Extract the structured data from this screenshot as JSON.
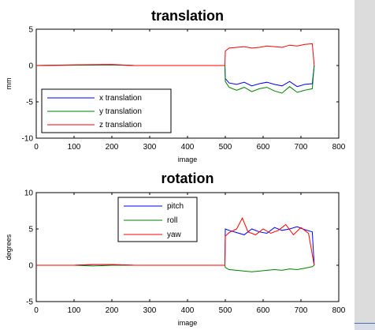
{
  "chart_data": [
    {
      "type": "line",
      "title": "translation",
      "xlabel": "image",
      "ylabel": "mm",
      "xlim": [
        0,
        800
      ],
      "ylim": [
        -10,
        5
      ],
      "xticks": [
        "0",
        "100",
        "200",
        "300",
        "400",
        "500",
        "600",
        "700",
        "800"
      ],
      "yticks": [
        "5",
        "0",
        "-5",
        "-10"
      ],
      "grid": false,
      "legend_position": "bottom-left",
      "series": [
        {
          "name": "x translation",
          "color": "#0000ff",
          "x": [
            0,
            100,
            200,
            260,
            300,
            400,
            499,
            500,
            510,
            530,
            550,
            570,
            590,
            610,
            630,
            650,
            670,
            690,
            710,
            730,
            735
          ],
          "y": [
            0.0,
            0.05,
            0.1,
            0.0,
            0.0,
            0.0,
            0.0,
            -1.8,
            -2.4,
            -2.6,
            -2.3,
            -2.8,
            -2.5,
            -2.3,
            -2.6,
            -2.8,
            -2.2,
            -2.9,
            -2.6,
            -2.5,
            0.0
          ]
        },
        {
          "name": "y translation",
          "color": "#008000",
          "x": [
            0,
            100,
            200,
            260,
            300,
            400,
            499,
            500,
            510,
            530,
            550,
            570,
            590,
            610,
            630,
            650,
            670,
            690,
            710,
            730,
            735
          ],
          "y": [
            0.0,
            0.05,
            0.1,
            0.0,
            0.0,
            0.0,
            0.0,
            -2.2,
            -3.0,
            -3.4,
            -3.0,
            -3.6,
            -3.2,
            -3.0,
            -3.5,
            -3.8,
            -2.9,
            -3.7,
            -3.4,
            -3.2,
            0.0
          ]
        },
        {
          "name": "z translation",
          "color": "#ff0000",
          "x": [
            0,
            100,
            200,
            260,
            300,
            400,
            499,
            500,
            510,
            530,
            550,
            570,
            590,
            610,
            630,
            650,
            670,
            690,
            710,
            730,
            735
          ],
          "y": [
            0.0,
            0.1,
            0.15,
            0.0,
            0.0,
            0.0,
            0.0,
            2.0,
            2.4,
            2.5,
            2.6,
            2.4,
            2.5,
            2.7,
            2.6,
            2.5,
            2.8,
            2.7,
            2.9,
            3.0,
            0.0
          ]
        }
      ]
    },
    {
      "type": "line",
      "title": "rotation",
      "xlabel": "image",
      "ylabel": "degrees",
      "xlim": [
        0,
        800
      ],
      "ylim": [
        -5,
        10
      ],
      "xticks": [
        "0",
        "100",
        "200",
        "300",
        "400",
        "500",
        "600",
        "700",
        "800"
      ],
      "yticks": [
        "10",
        "5",
        "0",
        "-5"
      ],
      "grid": false,
      "legend_position": "top-center",
      "series": [
        {
          "name": "pitch",
          "color": "#0000ff",
          "x": [
            0,
            100,
            150,
            200,
            260,
            300,
            400,
            499,
            500,
            510,
            530,
            550,
            570,
            590,
            610,
            630,
            650,
            670,
            690,
            710,
            730,
            735
          ],
          "y": [
            0.0,
            0.0,
            0.1,
            0.1,
            0.0,
            0.0,
            0.0,
            0.0,
            5.0,
            4.8,
            4.5,
            4.2,
            5.0,
            4.6,
            4.4,
            5.2,
            4.8,
            5.0,
            5.3,
            4.9,
            4.6,
            0.0
          ]
        },
        {
          "name": "roll",
          "color": "#008000",
          "x": [
            0,
            100,
            150,
            200,
            260,
            300,
            400,
            499,
            500,
            510,
            530,
            550,
            570,
            590,
            610,
            630,
            650,
            670,
            690,
            710,
            730,
            735
          ],
          "y": [
            0.0,
            0.0,
            -0.1,
            0.0,
            0.0,
            0.0,
            0.0,
            0.0,
            -0.3,
            -0.6,
            -0.7,
            -0.8,
            -0.9,
            -0.8,
            -0.7,
            -0.6,
            -0.7,
            -0.5,
            -0.6,
            -0.4,
            -0.2,
            0.0
          ]
        },
        {
          "name": "yaw",
          "color": "#ff0000",
          "x": [
            0,
            100,
            150,
            200,
            260,
            300,
            400,
            499,
            500,
            510,
            530,
            545,
            560,
            580,
            600,
            620,
            640,
            660,
            680,
            700,
            720,
            735
          ],
          "y": [
            0.0,
            0.0,
            0.1,
            0.1,
            0.0,
            0.0,
            0.0,
            0.0,
            4.0,
            4.5,
            5.0,
            6.5,
            4.6,
            4.2,
            5.0,
            4.4,
            4.8,
            5.6,
            4.2,
            5.2,
            4.4,
            0.0
          ]
        }
      ]
    }
  ]
}
